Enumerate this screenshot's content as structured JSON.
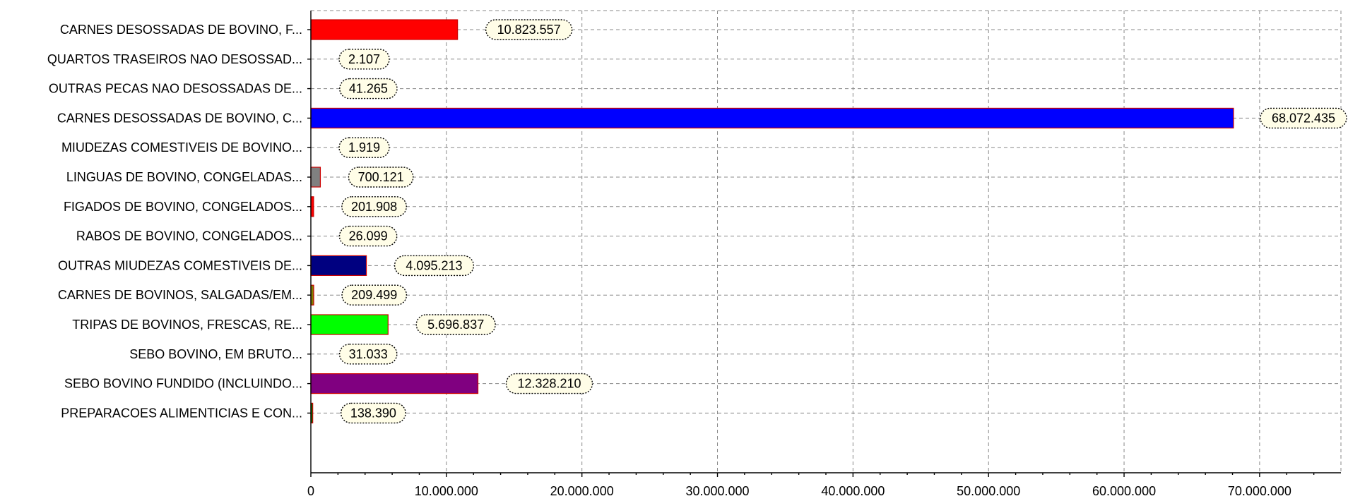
{
  "chart_data": {
    "type": "bar",
    "orientation": "horizontal",
    "title": "",
    "xlabel": "",
    "ylabel": "",
    "xlim": [
      0,
      76000000
    ],
    "grid": true,
    "x_ticks": [
      0,
      10000000,
      20000000,
      30000000,
      40000000,
      50000000,
      60000000,
      70000000
    ],
    "x_tick_labels": [
      "0",
      "10.000.000",
      "20.000.000",
      "30.000.000",
      "40.000.000",
      "50.000.000",
      "60.000.000",
      "70.000.000"
    ],
    "categories": [
      "CARNES DESOSSADAS DE BOVINO, F...",
      "QUARTOS TRASEIROS NAO DESOSSAD...",
      "OUTRAS PECAS NAO DESOSSADAS DE...",
      "CARNES DESOSSADAS DE BOVINO, C...",
      "MIUDEZAS COMESTIVEIS DE BOVINO...",
      "LINGUAS DE BOVINO, CONGELADAS...",
      "FIGADOS DE BOVINO, CONGELADOS...",
      "RABOS DE BOVINO, CONGELADOS...",
      "OUTRAS MIUDEZAS COMESTIVEIS DE...",
      "CARNES DE BOVINOS, SALGADAS/EM...",
      "TRIPAS DE BOVINOS, FRESCAS, RE...",
      "SEBO BOVINO, EM BRUTO...",
      "SEBO BOVINO FUNDIDO (INCLUINDO...",
      "PREPARACOES ALIMENTICIAS E CON..."
    ],
    "values": [
      10823557,
      2107,
      41265,
      68072435,
      1919,
      700121,
      201908,
      26099,
      4095213,
      209499,
      5696837,
      31033,
      12328210,
      138390
    ],
    "data_labels": [
      "10.823.557",
      "2.107",
      "41.265",
      "68.072.435",
      "1.919",
      "700.121",
      "201.908",
      "26.099",
      "4.095.213",
      "209.499",
      "5.696.837",
      "31.033",
      "12.328.210",
      "138.390"
    ],
    "bar_colors": [
      "#ff0000",
      "#00ffff",
      "#ffff00",
      "#0000ff",
      "#ff00ff",
      "#808080",
      "#ff0000",
      "#008080",
      "#000080",
      "#808000",
      "#00ff00",
      "#800000",
      "#800080",
      "#008000"
    ]
  }
}
